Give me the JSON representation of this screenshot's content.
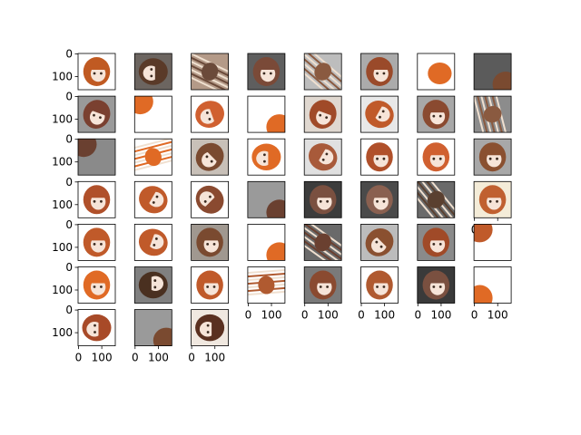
{
  "figure": {
    "background": "#ffffff",
    "rows": 7,
    "cols": 8,
    "panel_count": 51
  },
  "chart_data": {
    "type": "image-grid",
    "title": "",
    "image_size": [
      160,
      160
    ],
    "x_ticks": [
      "0",
      "100"
    ],
    "y_ticks": [
      "0",
      "100"
    ],
    "panels": [
      {
        "bg": "#ffffff",
        "tone": "#c05a22",
        "shape": "head",
        "angle": 0,
        "y_ticks_visible": true,
        "x_ticks_visible": false
      },
      {
        "bg": "#6c6560",
        "tone": "#5a3a28",
        "shape": "head",
        "angle": 90,
        "y_ticks_visible": false,
        "x_ticks_visible": false
      },
      {
        "bg": "#b49a88",
        "tone": "#6b4a3a",
        "shape": "streak",
        "angle": 20,
        "y_ticks_visible": false,
        "x_ticks_visible": false
      },
      {
        "bg": "#5e5e5e",
        "tone": "#7a4a38",
        "shape": "head",
        "angle": 0,
        "y_ticks_visible": false,
        "x_ticks_visible": false
      },
      {
        "bg": "#bdbdbd",
        "tone": "#8a5a40",
        "shape": "streak",
        "angle": 35,
        "y_ticks_visible": false,
        "x_ticks_visible": false
      },
      {
        "bg": "#ababab",
        "tone": "#9a4a2a",
        "shape": "head",
        "angle": 0,
        "y_ticks_visible": false,
        "x_ticks_visible": false
      },
      {
        "bg": "#ffffff",
        "tone": "#e06a25",
        "shape": "blob",
        "angle": 0,
        "y_ticks_visible": false,
        "x_ticks_visible": false
      },
      {
        "bg": "#5b5b5b",
        "tone": "#7a4a30",
        "shape": "corner",
        "angle": 0,
        "y_ticks_visible": false,
        "x_ticks_visible": false
      },
      {
        "bg": "#9a9a9a",
        "tone": "#7a4030",
        "shape": "head",
        "angle": 20,
        "y_ticks_visible": true,
        "x_ticks_visible": false
      },
      {
        "bg": "#ffffff",
        "tone": "#e06a25",
        "shape": "corner",
        "angle": 180,
        "y_ticks_visible": false,
        "x_ticks_visible": false
      },
      {
        "bg": "#ffffff",
        "tone": "#d06030",
        "shape": "head",
        "angle": 70,
        "y_ticks_visible": false,
        "x_ticks_visible": false
      },
      {
        "bg": "#ffffff",
        "tone": "#e06a25",
        "shape": "corner",
        "angle": 0,
        "y_ticks_visible": false,
        "x_ticks_visible": false
      },
      {
        "bg": "#e0d8d0",
        "tone": "#a04a28",
        "shape": "head",
        "angle": 20,
        "y_ticks_visible": false,
        "x_ticks_visible": false
      },
      {
        "bg": "#e8e8e8",
        "tone": "#c05a2a",
        "shape": "head",
        "angle": 300,
        "y_ticks_visible": false,
        "x_ticks_visible": false
      },
      {
        "bg": "#a8a8a8",
        "tone": "#8a4a30",
        "shape": "head",
        "angle": 0,
        "y_ticks_visible": false,
        "x_ticks_visible": false
      },
      {
        "bg": "#8c8c8c",
        "tone": "#8a5a40",
        "shape": "streak",
        "angle": 70,
        "y_ticks_visible": false,
        "x_ticks_visible": false
      },
      {
        "bg": "#8a8a8a",
        "tone": "#6a4030",
        "shape": "corner",
        "angle": 180,
        "y_ticks_visible": true,
        "x_ticks_visible": false
      },
      {
        "bg": "#ffffff",
        "tone": "#e06a25",
        "shape": "streak",
        "angle": 160,
        "y_ticks_visible": false,
        "x_ticks_visible": false
      },
      {
        "bg": "#c8c0b8",
        "tone": "#7a4a30",
        "shape": "head",
        "angle": 45,
        "y_ticks_visible": false,
        "x_ticks_visible": false
      },
      {
        "bg": "#ffffff",
        "tone": "#e06a25",
        "shape": "head",
        "angle": 90,
        "y_ticks_visible": false,
        "x_ticks_visible": false
      },
      {
        "bg": "#e0e0e0",
        "tone": "#a85a3a",
        "shape": "head",
        "angle": 300,
        "y_ticks_visible": false,
        "x_ticks_visible": false
      },
      {
        "bg": "#ffffff",
        "tone": "#b0502a",
        "shape": "head",
        "angle": 0,
        "y_ticks_visible": false,
        "x_ticks_visible": false
      },
      {
        "bg": "#ffffff",
        "tone": "#d06030",
        "shape": "head",
        "angle": 0,
        "y_ticks_visible": false,
        "x_ticks_visible": false
      },
      {
        "bg": "#a8a8a8",
        "tone": "#8a5030",
        "shape": "head",
        "angle": 0,
        "y_ticks_visible": false,
        "x_ticks_visible": false
      },
      {
        "bg": "#ffffff",
        "tone": "#b0502a",
        "shape": "head",
        "angle": 0,
        "y_ticks_visible": true,
        "x_ticks_visible": false
      },
      {
        "bg": "#ffffff",
        "tone": "#c05a2a",
        "shape": "head",
        "angle": 300,
        "y_ticks_visible": false,
        "x_ticks_visible": false
      },
      {
        "bg": "#ffffff",
        "tone": "#8a4a30",
        "shape": "head",
        "angle": 135,
        "y_ticks_visible": false,
        "x_ticks_visible": false
      },
      {
        "bg": "#9a9a9a",
        "tone": "#6a4030",
        "shape": "corner",
        "angle": 0,
        "y_ticks_visible": false,
        "x_ticks_visible": false
      },
      {
        "bg": "#3c3c3c",
        "tone": "#7a5040",
        "shape": "head",
        "angle": 0,
        "y_ticks_visible": false,
        "x_ticks_visible": false
      },
      {
        "bg": "#4a4a4a",
        "tone": "#8a6050",
        "shape": "head",
        "angle": 0,
        "y_ticks_visible": false,
        "x_ticks_visible": false
      },
      {
        "bg": "#6a6a6a",
        "tone": "#5a4030",
        "shape": "streak",
        "angle": 45,
        "y_ticks_visible": false,
        "x_ticks_visible": false
      },
      {
        "bg": "#f4ecd8",
        "tone": "#c06030",
        "shape": "head",
        "angle": 0,
        "y_ticks_visible": false,
        "x_ticks_visible": true
      },
      {
        "bg": "#ffffff",
        "tone": "#c05a2a",
        "shape": "head",
        "angle": 0,
        "y_ticks_visible": true,
        "x_ticks_visible": false
      },
      {
        "bg": "#ffffff",
        "tone": "#c05a2a",
        "shape": "head",
        "angle": 290,
        "y_ticks_visible": false,
        "x_ticks_visible": false
      },
      {
        "bg": "#a09890",
        "tone": "#7a4a30",
        "shape": "head",
        "angle": 0,
        "y_ticks_visible": false,
        "x_ticks_visible": false
      },
      {
        "bg": "#ffffff",
        "tone": "#e06a25",
        "shape": "corner",
        "angle": 0,
        "y_ticks_visible": false,
        "x_ticks_visible": false
      },
      {
        "bg": "#6a6a6a",
        "tone": "#6a4030",
        "shape": "streak",
        "angle": 30,
        "y_ticks_visible": false,
        "x_ticks_visible": false
      },
      {
        "bg": "#bcbcbc",
        "tone": "#8a5030",
        "shape": "head",
        "angle": 45,
        "y_ticks_visible": false,
        "x_ticks_visible": false
      },
      {
        "bg": "#8a8a8a",
        "tone": "#a04a28",
        "shape": "head",
        "angle": 0,
        "y_ticks_visible": false,
        "x_ticks_visible": false
      },
      {
        "bg": "#ffffff",
        "tone": "#c05a2a",
        "shape": "corner",
        "angle": 180,
        "y_ticks_visible": false,
        "x_ticks_visible": false
      },
      {
        "bg": "#ffffff",
        "tone": "#e06a25",
        "shape": "head",
        "angle": 0,
        "y_ticks_visible": true,
        "x_ticks_visible": false
      },
      {
        "bg": "#808080",
        "tone": "#4a3020",
        "shape": "head",
        "angle": 270,
        "y_ticks_visible": false,
        "x_ticks_visible": false
      },
      {
        "bg": "#ffffff",
        "tone": "#c05a2a",
        "shape": "head",
        "angle": 0,
        "y_ticks_visible": false,
        "x_ticks_visible": false
      },
      {
        "bg": "#ffffff",
        "tone": "#b05a30",
        "shape": "streak",
        "angle": 170,
        "y_ticks_visible": false,
        "x_ticks_visible": true
      },
      {
        "bg": "#7a7a7a",
        "tone": "#8a4a30",
        "shape": "head",
        "angle": 0,
        "y_ticks_visible": false,
        "x_ticks_visible": true
      },
      {
        "bg": "#ffffff",
        "tone": "#b05a30",
        "shape": "head",
        "angle": 0,
        "y_ticks_visible": false,
        "x_ticks_visible": true
      },
      {
        "bg": "#3a3a3a",
        "tone": "#7a5040",
        "shape": "head",
        "angle": 0,
        "y_ticks_visible": false,
        "x_ticks_visible": true
      },
      {
        "bg": "#ffffff",
        "tone": "#e06a25",
        "shape": "corner",
        "angle": 90,
        "y_ticks_visible": false,
        "x_ticks_visible": true
      },
      {
        "bg": "#ffffff",
        "tone": "#a84a28",
        "shape": "head",
        "angle": 90,
        "y_ticks_visible": true,
        "x_ticks_visible": true
      },
      {
        "bg": "#9a9a9a",
        "tone": "#7a4a30",
        "shape": "corner",
        "angle": 0,
        "y_ticks_visible": false,
        "x_ticks_visible": true
      },
      {
        "bg": "#f0e8e0",
        "tone": "#5a3020",
        "shape": "head",
        "angle": 90,
        "y_ticks_visible": false,
        "x_ticks_visible": true
      }
    ]
  }
}
